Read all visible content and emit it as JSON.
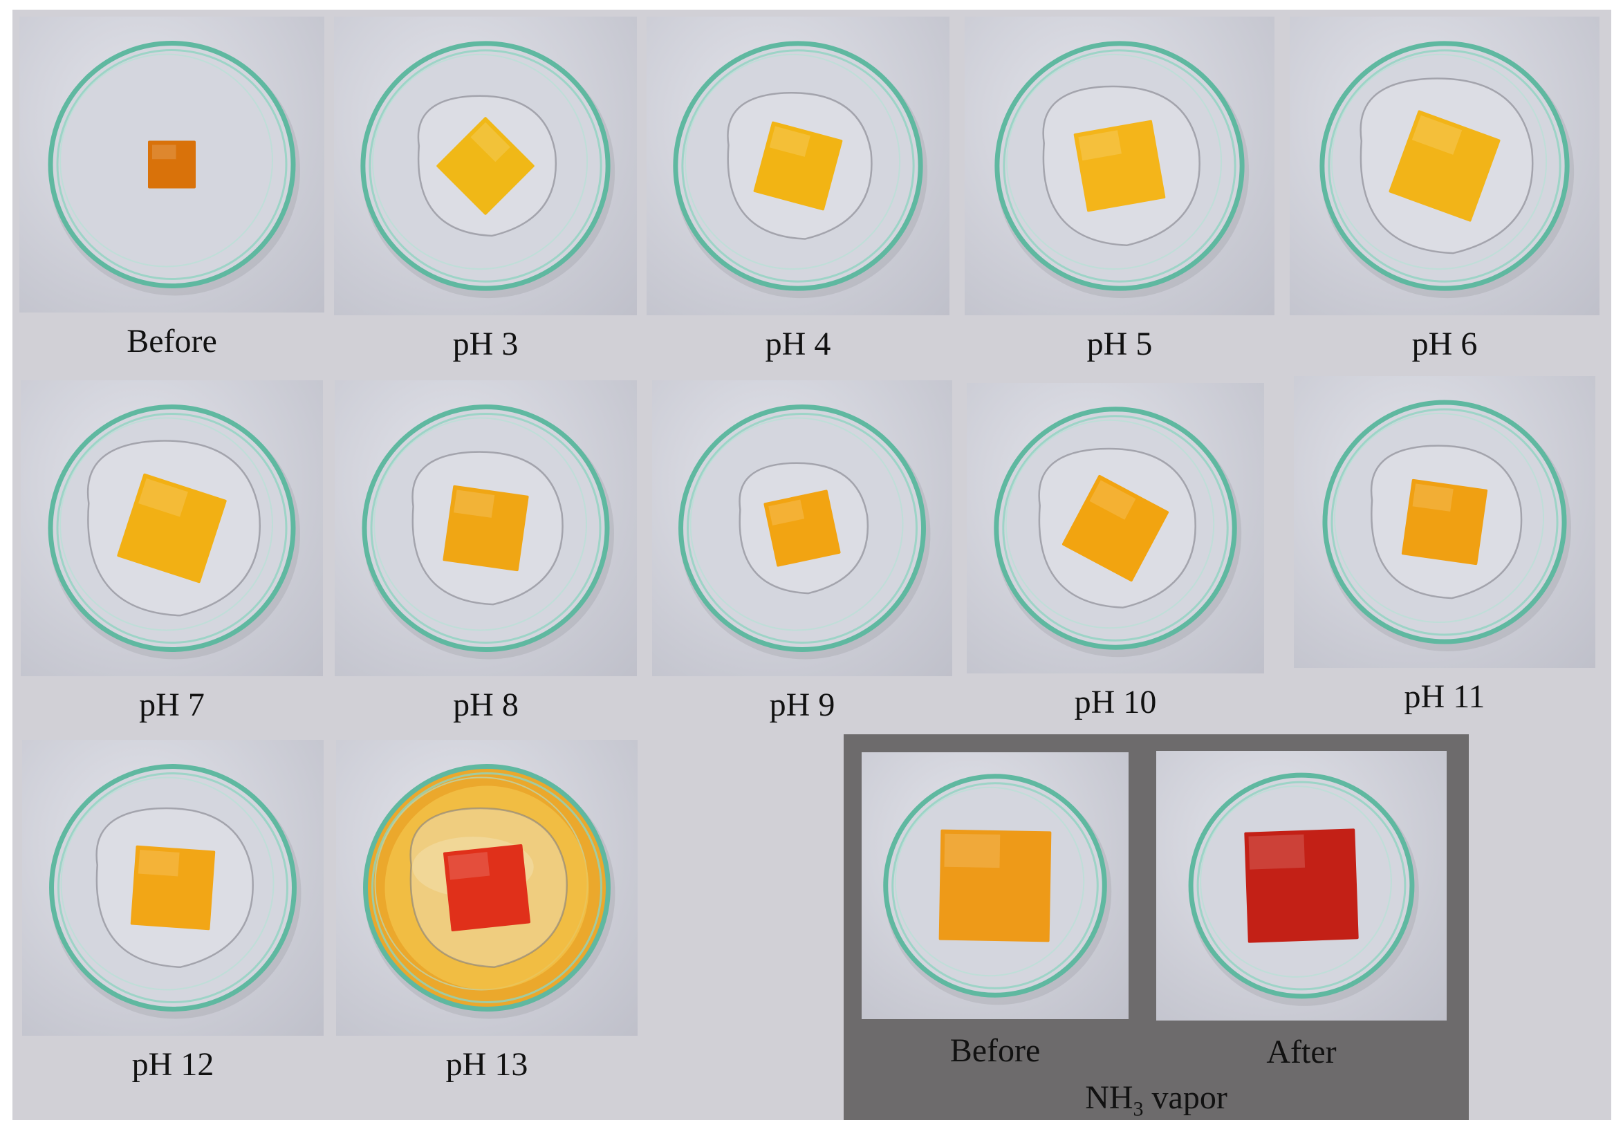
{
  "panels": [
    {
      "label": "Before",
      "film_color": "#d9720a",
      "film_size": 60,
      "film_rot": 0,
      "liquid": false,
      "bath": "none"
    },
    {
      "label": "pH 3",
      "film_color": "#f0b817",
      "film_size": 88,
      "film_rot": 45,
      "liquid": true,
      "bath": "none"
    },
    {
      "label": "pH 4",
      "film_color": "#f2b414",
      "film_size": 92,
      "film_rot": 15,
      "liquid": true,
      "bath": "none"
    },
    {
      "label": "pH 5",
      "film_color": "#f4b51a",
      "film_size": 100,
      "film_rot": -10,
      "liquid": true,
      "bath": "none"
    },
    {
      "label": "pH 6",
      "film_color": "#f2b418",
      "film_size": 110,
      "film_rot": 20,
      "liquid": true,
      "bath": "none"
    },
    {
      "label": "pH 7",
      "film_color": "#f2b014",
      "film_size": 110,
      "film_rot": 18,
      "liquid": true,
      "bath": "none"
    },
    {
      "label": "pH 8",
      "film_color": "#f0a614",
      "film_size": 96,
      "film_rot": 8,
      "liquid": true,
      "bath": "none"
    },
    {
      "label": "pH 9",
      "film_color": "#f2a412",
      "film_size": 82,
      "film_rot": -12,
      "liquid": true,
      "bath": "none"
    },
    {
      "label": "pH 10",
      "film_color": "#f2a410",
      "film_size": 100,
      "film_rot": 28,
      "liquid": true,
      "bath": "none"
    },
    {
      "label": "pH 11",
      "film_color": "#f0a012",
      "film_size": 96,
      "film_rot": 8,
      "liquid": true,
      "bath": "none"
    },
    {
      "label": "pH 12",
      "film_color": "#f2a616",
      "film_size": 100,
      "film_rot": 4,
      "liquid": true,
      "bath": "none"
    },
    {
      "label": "pH 13",
      "film_color": "#e0301a",
      "film_size": 100,
      "film_rot": -6,
      "liquid": true,
      "bath": "yellow"
    }
  ],
  "nh3": {
    "before_label": "Before",
    "after_label": "After",
    "title_prefix": "NH",
    "title_sub": "3",
    "title_suffix": " vapor",
    "before_color": "#ee9a18",
    "after_color": "#c32016"
  }
}
